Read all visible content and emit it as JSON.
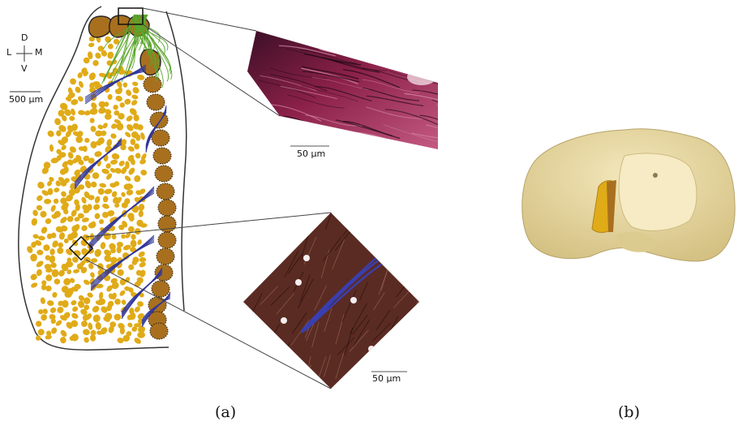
{
  "panel_a": {
    "caption": "(a)",
    "orientation": {
      "dorsal": "D",
      "lateral": "L",
      "medial": "M",
      "ventral": "V"
    },
    "scalebar_overview": "500 µm",
    "scalebar_inset_top": "50 µm",
    "scalebar_inset_bottom": "50 µm"
  },
  "panel_b": {
    "caption": "(b)"
  },
  "colors": {
    "cell_yellow": "#e0ab18",
    "cell_brown": "#a8701e",
    "fiber_green": "#5aa52c",
    "fiber_blue": "#31369a",
    "brain_tan": "#e5d59a"
  }
}
